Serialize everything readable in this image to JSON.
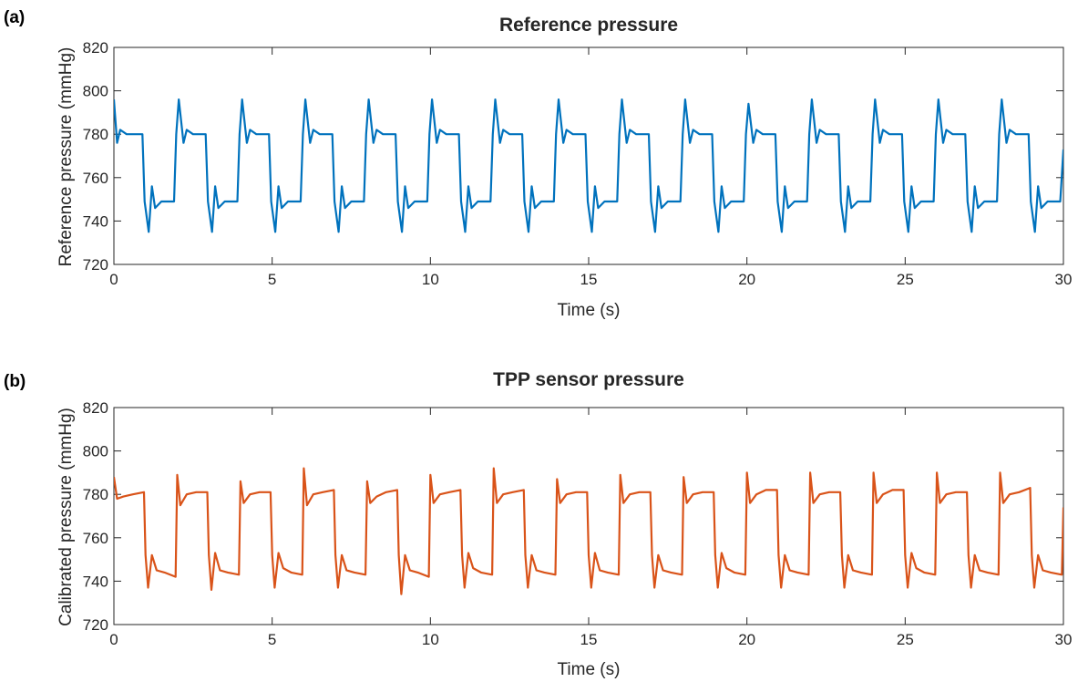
{
  "panels": [
    {
      "label": "(a)",
      "title": "Reference pressure",
      "xlabel": "Time (s)",
      "ylabel": "Reference pressure (mmHg)"
    },
    {
      "label": "(b)",
      "title": "TPP sensor pressure",
      "xlabel": "Time (s)",
      "ylabel": "Calibrated pressure (mmHg)"
    }
  ],
  "chart_data": [
    {
      "type": "line",
      "title": "Reference pressure",
      "xlabel": "Time (s)",
      "ylabel": "Reference pressure (mmHg)",
      "xlim": [
        0,
        30
      ],
      "ylim": [
        720,
        820
      ],
      "xticks": [
        0,
        5,
        10,
        15,
        20,
        25,
        30
      ],
      "yticks": [
        720,
        740,
        760,
        780,
        800,
        820
      ],
      "grid": false,
      "color": "#0072BD",
      "waveform": {
        "period_s": 2,
        "high": 780,
        "low": 749,
        "spike_high": 796,
        "spike_low": 735
      },
      "series": [
        {
          "x": [
            0,
            0.1,
            0.2,
            0.4,
            0.9,
            0.97,
            1.1,
            1.2,
            1.3,
            1.5,
            1.9,
            1.97,
            2.05,
            2.2,
            2.3,
            2.5,
            2.9,
            2.97,
            3.1,
            3.2,
            3.3,
            3.5,
            3.9,
            3.97,
            4.05,
            4.2,
            4.3,
            4.5,
            4.9,
            4.97,
            5.1,
            5.2,
            5.3,
            5.5,
            5.9,
            5.97,
            6.05,
            6.2,
            6.3,
            6.5,
            6.9,
            6.97,
            7.1,
            7.2,
            7.3,
            7.5,
            7.9,
            7.97,
            8.05,
            8.2,
            8.3,
            8.5,
            8.9,
            8.97,
            9.1,
            9.2,
            9.3,
            9.5,
            9.9,
            9.97,
            10.05,
            10.2,
            10.3,
            10.5,
            10.9,
            10.97,
            11.1,
            11.2,
            11.3,
            11.5,
            11.9,
            11.97,
            12.05,
            12.2,
            12.3,
            12.5,
            12.9,
            12.97,
            13.1,
            13.2,
            13.3,
            13.5,
            13.9,
            13.97,
            14.05,
            14.2,
            14.3,
            14.5,
            14.9,
            14.97,
            15.1,
            15.2,
            15.3,
            15.5,
            15.9,
            15.97,
            16.05,
            16.2,
            16.3,
            16.5,
            16.9,
            16.97,
            17.1,
            17.2,
            17.3,
            17.5,
            17.9,
            17.97,
            18.05,
            18.2,
            18.3,
            18.5,
            18.9,
            18.97,
            19.1,
            19.2,
            19.3,
            19.5,
            19.9,
            19.97,
            20.05,
            20.2,
            20.3,
            20.5,
            20.9,
            20.97,
            21.1,
            21.2,
            21.3,
            21.5,
            21.9,
            21.97,
            22.05,
            22.2,
            22.3,
            22.5,
            22.9,
            22.97,
            23.1,
            23.2,
            23.3,
            23.5,
            23.9,
            23.97,
            24.05,
            24.2,
            24.3,
            24.5,
            24.9,
            24.97,
            25.1,
            25.2,
            25.3,
            25.5,
            25.9,
            25.97,
            26.05,
            26.2,
            26.3,
            26.5,
            26.9,
            26.97,
            27.1,
            27.2,
            27.3,
            27.5,
            27.9,
            27.97,
            28.05,
            28.2,
            28.3,
            28.5,
            28.9,
            28.97,
            29.1,
            29.2,
            29.3,
            29.5,
            29.9,
            30
          ],
          "y": [
            796,
            776,
            782,
            780,
            780,
            749,
            735,
            756,
            746,
            749,
            749,
            780,
            796,
            776,
            782,
            780,
            780,
            749,
            735,
            756,
            746,
            749,
            749,
            780,
            796,
            776,
            782,
            780,
            780,
            749,
            735,
            756,
            746,
            749,
            749,
            780,
            796,
            776,
            782,
            780,
            780,
            749,
            735,
            756,
            746,
            749,
            749,
            780,
            796,
            776,
            782,
            780,
            780,
            749,
            735,
            756,
            746,
            749,
            749,
            780,
            796,
            776,
            782,
            780,
            780,
            749,
            735,
            756,
            746,
            749,
            749,
            780,
            796,
            776,
            782,
            780,
            780,
            749,
            735,
            756,
            746,
            749,
            749,
            780,
            796,
            776,
            782,
            780,
            780,
            749,
            735,
            756,
            746,
            749,
            749,
            780,
            796,
            776,
            782,
            780,
            780,
            749,
            735,
            756,
            746,
            749,
            749,
            780,
            796,
            776,
            782,
            780,
            780,
            749,
            735,
            756,
            746,
            749,
            749,
            780,
            794,
            776,
            782,
            780,
            780,
            749,
            735,
            756,
            746,
            749,
            749,
            780,
            796,
            776,
            782,
            780,
            780,
            749,
            735,
            756,
            746,
            749,
            749,
            780,
            796,
            776,
            782,
            780,
            780,
            749,
            735,
            756,
            746,
            749,
            749,
            780,
            796,
            776,
            782,
            780,
            780,
            749,
            735,
            756,
            746,
            749,
            749,
            780,
            796,
            776,
            782,
            780,
            780,
            749,
            735,
            756,
            746,
            749,
            749,
            773
          ]
        }
      ]
    },
    {
      "type": "line",
      "title": "TPP sensor pressure",
      "xlabel": "Time (s)",
      "ylabel": "Calibrated pressure (mmHg)",
      "xlim": [
        0,
        30
      ],
      "ylim": [
        720,
        820
      ],
      "xticks": [
        0,
        5,
        10,
        15,
        20,
        25,
        30
      ],
      "yticks": [
        720,
        740,
        760,
        780,
        800,
        820
      ],
      "grid": false,
      "color": "#D95319",
      "waveform": {
        "period_s": 2,
        "high": 781,
        "low": 744,
        "spike_high": 790,
        "spike_low": 737
      },
      "series": [
        {
          "x": [
            0,
            0.1,
            0.3,
            0.6,
            0.95,
            1.0,
            1.08,
            1.2,
            1.35,
            1.6,
            1.95,
            2.0,
            2.1,
            2.3,
            2.6,
            2.95,
            3.0,
            3.08,
            3.2,
            3.35,
            3.6,
            3.95,
            4.0,
            4.1,
            4.3,
            4.6,
            4.95,
            5.0,
            5.08,
            5.2,
            5.35,
            5.6,
            5.95,
            6.0,
            6.1,
            6.3,
            6.6,
            6.95,
            7.0,
            7.08,
            7.2,
            7.35,
            7.6,
            7.95,
            8.0,
            8.1,
            8.3,
            8.6,
            8.95,
            9.0,
            9.08,
            9.2,
            9.35,
            9.6,
            9.95,
            10.0,
            10.1,
            10.3,
            10.6,
            10.95,
            11.0,
            11.08,
            11.2,
            11.35,
            11.6,
            11.95,
            12.0,
            12.1,
            12.3,
            12.6,
            12.95,
            13.0,
            13.08,
            13.2,
            13.35,
            13.6,
            13.95,
            14.0,
            14.1,
            14.3,
            14.6,
            14.95,
            15.0,
            15.08,
            15.2,
            15.35,
            15.6,
            15.95,
            16.0,
            16.1,
            16.3,
            16.6,
            16.95,
            17.0,
            17.08,
            17.2,
            17.35,
            17.6,
            17.95,
            18.0,
            18.1,
            18.3,
            18.6,
            18.95,
            19.0,
            19.08,
            19.2,
            19.35,
            19.6,
            19.95,
            20.0,
            20.1,
            20.3,
            20.6,
            20.95,
            21.0,
            21.08,
            21.2,
            21.35,
            21.6,
            21.95,
            22.0,
            22.1,
            22.3,
            22.6,
            22.95,
            23.0,
            23.08,
            23.2,
            23.35,
            23.6,
            23.95,
            24.0,
            24.1,
            24.3,
            24.6,
            24.95,
            25.0,
            25.08,
            25.2,
            25.35,
            25.6,
            25.95,
            26.0,
            26.1,
            26.3,
            26.6,
            26.95,
            27.0,
            27.08,
            27.2,
            27.35,
            27.6,
            27.95,
            28.0,
            28.1,
            28.3,
            28.6,
            28.95,
            29.0,
            29.08,
            29.2,
            29.35,
            29.6,
            29.95,
            30
          ],
          "y": [
            788,
            778,
            779,
            780,
            781,
            752,
            737,
            752,
            745,
            744,
            742,
            789,
            775,
            780,
            781,
            781,
            752,
            736,
            753,
            745,
            744,
            743,
            786,
            776,
            780,
            781,
            781,
            752,
            737,
            753,
            746,
            744,
            743,
            792,
            775,
            780,
            781,
            782,
            752,
            737,
            752,
            745,
            744,
            743,
            786,
            776,
            779,
            781,
            782,
            752,
            734,
            752,
            745,
            744,
            742,
            789,
            776,
            780,
            781,
            782,
            752,
            737,
            753,
            746,
            744,
            743,
            792,
            776,
            780,
            781,
            782,
            752,
            737,
            752,
            745,
            744,
            743,
            787,
            776,
            780,
            781,
            781,
            752,
            737,
            753,
            745,
            744,
            743,
            789,
            776,
            780,
            781,
            781,
            752,
            737,
            752,
            745,
            744,
            743,
            788,
            776,
            780,
            781,
            781,
            752,
            737,
            753,
            746,
            744,
            743,
            790,
            776,
            780,
            782,
            782,
            752,
            737,
            752,
            745,
            744,
            743,
            790,
            776,
            780,
            781,
            781,
            752,
            737,
            752,
            745,
            744,
            743,
            790,
            776,
            780,
            782,
            782,
            752,
            737,
            753,
            746,
            744,
            743,
            790,
            776,
            780,
            781,
            781,
            752,
            737,
            752,
            745,
            744,
            743,
            790,
            776,
            780,
            781,
            783,
            752,
            737,
            752,
            745,
            744,
            743,
            774
          ]
        }
      ]
    }
  ]
}
